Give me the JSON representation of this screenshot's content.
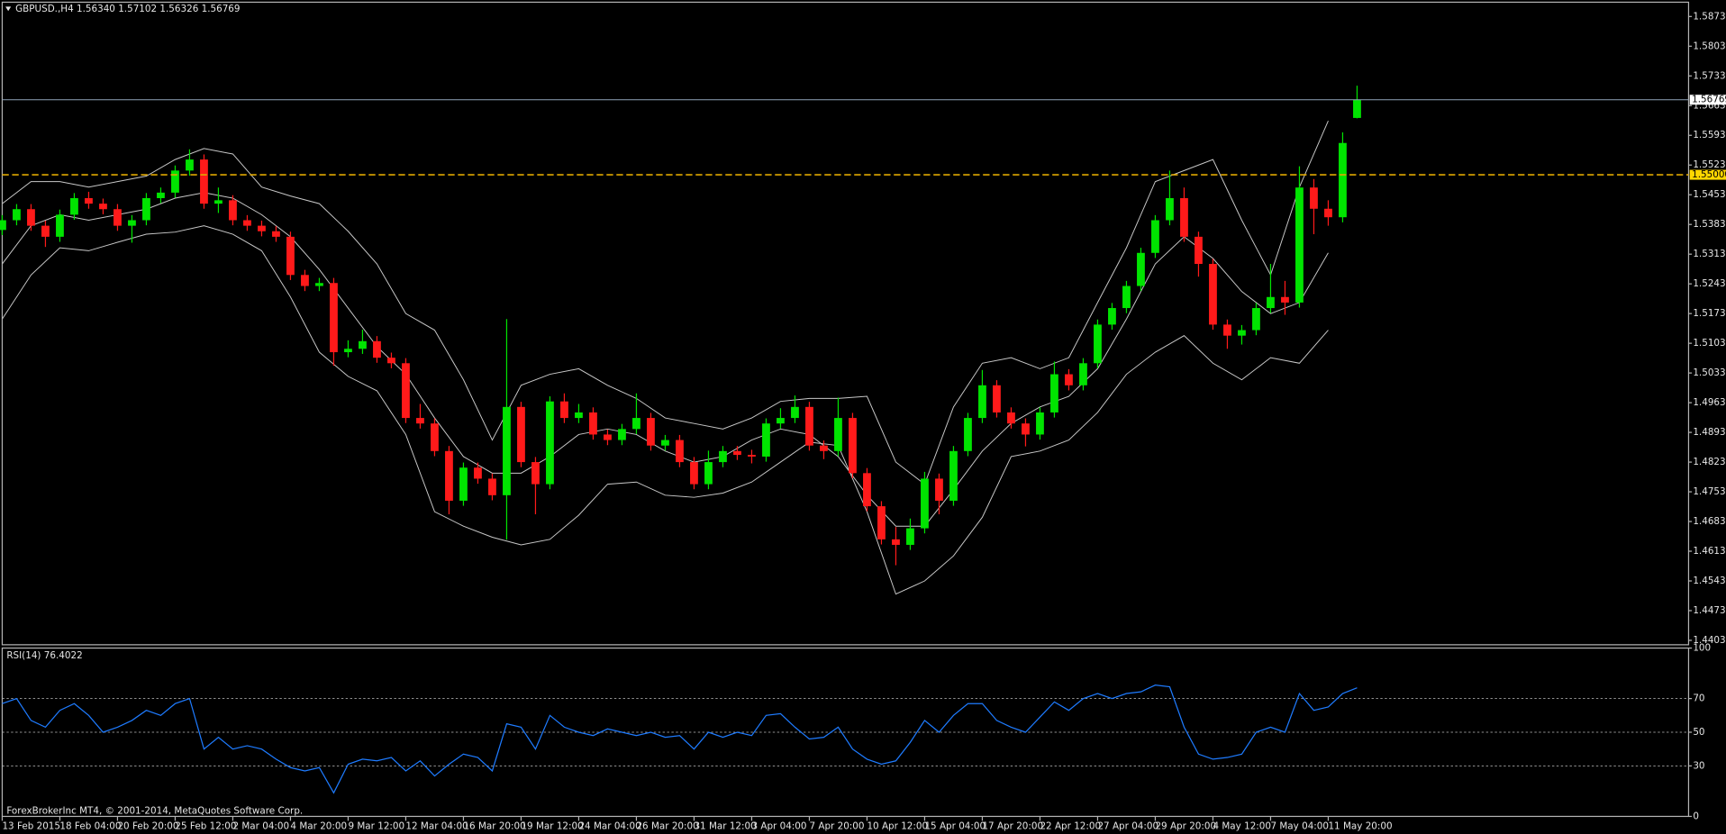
{
  "chart_data": [
    {
      "type": "candlestick",
      "title": "GBPUSD.,H4  1.56340 1.57102 1.56326 1.56769",
      "x": [
        0,
        4,
        8,
        12,
        16,
        20,
        24,
        28,
        32,
        36,
        40,
        44,
        48,
        52,
        56,
        60,
        64,
        68,
        72,
        76,
        80,
        84,
        88,
        92,
        96,
        100,
        104,
        108,
        112,
        116,
        120,
        124,
        128,
        132,
        136,
        140,
        144,
        148,
        152,
        156,
        160,
        164,
        168,
        172,
        176,
        180,
        184,
        188,
        192,
        196,
        200,
        204,
        208,
        212,
        216,
        220,
        224,
        228,
        232,
        236,
        240,
        244,
        248,
        252,
        256,
        260,
        264,
        268,
        272,
        276,
        280,
        284,
        288,
        292,
        296,
        300,
        304,
        308,
        312,
        316,
        320,
        324,
        328,
        332,
        336,
        340,
        344,
        348,
        352,
        356,
        360,
        364,
        368,
        372,
        376
      ],
      "open": [
        1.537,
        1.5393,
        1.5419,
        1.538,
        1.5354,
        1.5406,
        1.5445,
        1.5432,
        1.5419,
        1.538,
        1.5393,
        1.5445,
        1.5458,
        1.551,
        1.5536,
        1.5432,
        1.544,
        1.5393,
        1.538,
        1.5367,
        1.5354,
        1.5264,
        1.5238,
        1.5245,
        1.5082,
        1.509,
        1.5108,
        1.5069,
        1.5056,
        1.4927,
        1.4914,
        1.4849,
        1.4732,
        1.481,
        1.4784,
        1.4745,
        1.4953,
        1.4823,
        1.4771,
        1.4966,
        1.4927,
        1.494,
        1.4888,
        1.4875,
        1.4901,
        1.4927,
        1.4862,
        1.4875,
        1.4823,
        1.4771,
        1.4823,
        1.4849,
        1.484,
        1.4836,
        1.4914,
        1.4927,
        1.4953,
        1.4862,
        1.4849,
        1.4927,
        1.4797,
        1.4719,
        1.4641,
        1.4628,
        1.4667,
        1.4784,
        1.4732,
        1.4849,
        1.4927,
        1.5004,
        1.494,
        1.4914,
        1.4888,
        1.494,
        1.503,
        1.5004,
        1.5056,
        1.5147,
        1.5186,
        1.5238,
        1.5316,
        1.5393,
        1.5445,
        1.5354,
        1.529,
        1.5147,
        1.5121,
        1.5134,
        1.5186,
        1.5212,
        1.5199,
        1.547,
        1.542,
        1.54,
        1.5634
      ],
      "high": [
        1.5405,
        1.5431,
        1.5431,
        1.5392,
        1.5418,
        1.5457,
        1.546,
        1.5444,
        1.5431,
        1.5405,
        1.5457,
        1.547,
        1.5522,
        1.556,
        1.5548,
        1.547,
        1.5452,
        1.5405,
        1.5392,
        1.5379,
        1.5366,
        1.5276,
        1.5257,
        1.5257,
        1.511,
        1.5135,
        1.512,
        1.5081,
        1.5068,
        1.496,
        1.4926,
        1.4861,
        1.4822,
        1.4822,
        1.4796,
        1.516,
        1.4965,
        1.4835,
        1.4978,
        1.4985,
        1.496,
        1.4952,
        1.49,
        1.4913,
        1.4985,
        1.4939,
        1.4887,
        1.4887,
        1.4835,
        1.485,
        1.4861,
        1.4861,
        1.4852,
        1.4926,
        1.495,
        1.498,
        1.4965,
        1.4874,
        1.4975,
        1.4939,
        1.4809,
        1.4731,
        1.467,
        1.469,
        1.48,
        1.4796,
        1.4861,
        1.4939,
        1.504,
        1.5016,
        1.4952,
        1.4926,
        1.4952,
        1.506,
        1.5042,
        1.5068,
        1.5159,
        1.5198,
        1.525,
        1.5328,
        1.5405,
        1.551,
        1.547,
        1.5366,
        1.5302,
        1.5159,
        1.5146,
        1.5198,
        1.529,
        1.525,
        1.552,
        1.549,
        1.544,
        1.56,
        1.571
      ],
      "low": [
        1.5358,
        1.5381,
        1.5368,
        1.533,
        1.5342,
        1.5394,
        1.542,
        1.5407,
        1.5368,
        1.534,
        1.5381,
        1.5433,
        1.5446,
        1.5498,
        1.542,
        1.541,
        1.5381,
        1.5368,
        1.5355,
        1.5342,
        1.5252,
        1.5226,
        1.5226,
        1.505,
        1.507,
        1.5078,
        1.5057,
        1.5044,
        1.4915,
        1.4902,
        1.4837,
        1.47,
        1.472,
        1.4772,
        1.4733,
        1.464,
        1.4811,
        1.47,
        1.4759,
        1.4915,
        1.4915,
        1.4876,
        1.4863,
        1.4863,
        1.4889,
        1.485,
        1.485,
        1.4811,
        1.4759,
        1.4759,
        1.4811,
        1.4828,
        1.482,
        1.4824,
        1.4902,
        1.4915,
        1.485,
        1.483,
        1.4837,
        1.4785,
        1.4707,
        1.4629,
        1.458,
        1.4616,
        1.4655,
        1.47,
        1.472,
        1.4837,
        1.4915,
        1.4928,
        1.4902,
        1.486,
        1.4876,
        1.4928,
        1.4992,
        1.4992,
        1.5044,
        1.5135,
        1.5174,
        1.5226,
        1.5304,
        1.5381,
        1.5342,
        1.526,
        1.5135,
        1.509,
        1.51,
        1.5122,
        1.5174,
        1.517,
        1.5187,
        1.536,
        1.538,
        1.5388,
        1.5633
      ],
      "close": [
        1.5393,
        1.5419,
        1.538,
        1.5354,
        1.5406,
        1.5445,
        1.5432,
        1.5419,
        1.538,
        1.5393,
        1.5445,
        1.5458,
        1.551,
        1.5536,
        1.5432,
        1.544,
        1.5393,
        1.538,
        1.5367,
        1.5354,
        1.5264,
        1.5238,
        1.5245,
        1.5082,
        1.509,
        1.5108,
        1.5069,
        1.5056,
        1.4927,
        1.4914,
        1.4849,
        1.4732,
        1.481,
        1.4784,
        1.4745,
        1.4953,
        1.4823,
        1.4771,
        1.4966,
        1.4927,
        1.494,
        1.4888,
        1.4875,
        1.4901,
        1.4927,
        1.4862,
        1.4875,
        1.4823,
        1.4771,
        1.4823,
        1.4849,
        1.484,
        1.4836,
        1.4914,
        1.4927,
        1.4953,
        1.4862,
        1.4849,
        1.4927,
        1.4797,
        1.4719,
        1.4641,
        1.4628,
        1.4667,
        1.4784,
        1.4732,
        1.4849,
        1.4927,
        1.5004,
        1.494,
        1.4914,
        1.4888,
        1.494,
        1.503,
        1.5004,
        1.5056,
        1.5147,
        1.5186,
        1.5238,
        1.5316,
        1.5393,
        1.5445,
        1.5354,
        1.529,
        1.5147,
        1.5121,
        1.5134,
        1.5186,
        1.5212,
        1.5199,
        1.547,
        1.542,
        1.54,
        1.5575,
        1.5677
      ],
      "up_color": "#00e400",
      "down_color": "#ff1a1a",
      "bands": {
        "color": "#c8c8c8",
        "x": [
          0,
          8,
          16,
          24,
          32,
          40,
          48,
          56,
          64,
          72,
          80,
          88,
          96,
          104,
          112,
          120,
          128,
          136,
          144,
          152,
          160,
          168,
          176,
          184,
          192,
          200,
          208,
          216,
          224,
          232,
          240,
          248,
          256,
          264,
          272,
          280,
          288,
          296,
          304,
          312,
          320,
          328,
          336,
          344,
          352,
          360,
          368
        ],
        "upper": [
          1.5432,
          1.5484,
          1.5484,
          1.5471,
          1.5484,
          1.5497,
          1.5536,
          1.5562,
          1.5549,
          1.5471,
          1.545,
          1.5432,
          1.5367,
          1.529,
          1.5173,
          1.5134,
          1.5017,
          1.4875,
          1.5004,
          1.503,
          1.5043,
          1.5004,
          1.4973,
          1.4927,
          1.4914,
          1.4901,
          1.4927,
          1.4966,
          1.4973,
          1.4973,
          1.4978,
          1.4823,
          1.4771,
          1.4953,
          1.5056,
          1.5069,
          1.5043,
          1.5069,
          1.5199,
          1.5328,
          1.5484,
          1.551,
          1.5536,
          1.5393,
          1.5264,
          1.5471,
          1.5627
        ],
        "middle": [
          1.529,
          1.538,
          1.5406,
          1.5393,
          1.5406,
          1.5419,
          1.5445,
          1.5458,
          1.5445,
          1.5406,
          1.5354,
          1.5277,
          1.5186,
          1.5095,
          1.503,
          1.4927,
          1.4836,
          1.4797,
          1.4797,
          1.4836,
          1.4888,
          1.4901,
          1.4888,
          1.4849,
          1.4823,
          1.4836,
          1.4875,
          1.4901,
          1.4888,
          1.4836,
          1.4745,
          1.4672,
          1.4672,
          1.4758,
          1.4849,
          1.4914,
          1.4953,
          1.4978,
          1.5043,
          1.516,
          1.529,
          1.5354,
          1.5303,
          1.5225,
          1.5173,
          1.5199,
          1.5316
        ],
        "lower": [
          1.516,
          1.5264,
          1.5328,
          1.5321,
          1.5341,
          1.536,
          1.5365,
          1.538,
          1.536,
          1.5321,
          1.5212,
          1.5082,
          1.5025,
          1.4991,
          1.4888,
          1.4706,
          1.4672,
          1.4646,
          1.4628,
          1.4641,
          1.4698,
          1.4771,
          1.4776,
          1.4745,
          1.474,
          1.475,
          1.4776,
          1.4823,
          1.487,
          1.4862,
          1.4706,
          1.4512,
          1.4543,
          1.4602,
          1.4693,
          1.4836,
          1.4849,
          1.4875,
          1.494,
          1.503,
          1.5082,
          1.5121,
          1.5056,
          1.5017,
          1.5069,
          1.5056,
          1.5134
        ]
      },
      "lines": [
        {
          "value": 1.56769,
          "label": "1.56769",
          "color": "#8fa3b8",
          "style": "solid",
          "label_bg": "#ffffff"
        },
        {
          "value": 1.55,
          "label": "1.55000",
          "color": "#e0a800",
          "style": "dashed",
          "label_bg": "#ffd700"
        }
      ],
      "xlim": [
        0,
        468
      ],
      "xticks": [
        {
          "value": 0,
          "label": "13 Feb 2015"
        },
        {
          "value": 16,
          "label": "18 Feb 04:00"
        },
        {
          "value": 32,
          "label": "20 Feb 20:00"
        },
        {
          "value": 48,
          "label": "25 Feb 12:00"
        },
        {
          "value": 64,
          "label": "2 Mar 04:00"
        },
        {
          "value": 80,
          "label": "4 Mar 20:00"
        },
        {
          "value": 96,
          "label": "9 Mar 12:00"
        },
        {
          "value": 112,
          "label": "12 Mar 04:00"
        },
        {
          "value": 128,
          "label": "16 Mar 20:00"
        },
        {
          "value": 144,
          "label": "19 Mar 12:00"
        },
        {
          "value": 160,
          "label": "24 Mar 04:00"
        },
        {
          "value": 176,
          "label": "26 Mar 20:00"
        },
        {
          "value": 192,
          "label": "31 Mar 12:00"
        },
        {
          "value": 208,
          "label": "3 Apr 04:00"
        },
        {
          "value": 224,
          "label": "7 Apr 20:00"
        },
        {
          "value": 240,
          "label": "10 Apr 12:00"
        },
        {
          "value": 256,
          "label": "15 Apr 04:00"
        },
        {
          "value": 272,
          "label": "17 Apr 20:00"
        },
        {
          "value": 288,
          "label": "22 Apr 12:00"
        },
        {
          "value": 304,
          "label": "27 Apr 04:00"
        },
        {
          "value": 320,
          "label": "29 Apr 20:00"
        },
        {
          "value": 336,
          "label": "4 May 12:00"
        },
        {
          "value": 352,
          "label": "7 May 04:00"
        },
        {
          "value": 368,
          "label": "11 May 20:00"
        }
      ],
      "ylim": [
        1.43926,
        1.59067
      ],
      "yticks": [
        {
          "value": 1.4403,
          "label": "1.44030"
        },
        {
          "value": 1.4473,
          "label": "1.44730"
        },
        {
          "value": 1.4543,
          "label": "1.45430"
        },
        {
          "value": 1.4613,
          "label": "1.46130"
        },
        {
          "value": 1.4683,
          "label": "1.46830"
        },
        {
          "value": 1.4753,
          "label": "1.47530"
        },
        {
          "value": 1.4823,
          "label": "1.48230"
        },
        {
          "value": 1.4893,
          "label": "1.48930"
        },
        {
          "value": 1.4963,
          "label": "1.49630"
        },
        {
          "value": 1.5033,
          "label": "1.50330"
        },
        {
          "value": 1.5103,
          "label": "1.51030"
        },
        {
          "value": 1.5173,
          "label": "1.51730"
        },
        {
          "value": 1.5243,
          "label": "1.52430"
        },
        {
          "value": 1.5313,
          "label": "1.53130"
        },
        {
          "value": 1.5383,
          "label": "1.53830"
        },
        {
          "value": 1.5453,
          "label": "1.54530"
        },
        {
          "value": 1.5523,
          "label": "1.55230"
        },
        {
          "value": 1.5593,
          "label": "1.55930"
        },
        {
          "value": 1.5663,
          "label": "1.56630"
        },
        {
          "value": 1.5733,
          "label": "1.57330"
        },
        {
          "value": 1.5803,
          "label": "1.58030"
        },
        {
          "value": 1.5873,
          "label": "1.58730"
        }
      ]
    },
    {
      "type": "line",
      "title": "RSI(14) 76.4022",
      "x": [
        0,
        4,
        8,
        12,
        16,
        20,
        24,
        28,
        32,
        36,
        40,
        44,
        48,
        52,
        56,
        60,
        64,
        68,
        72,
        76,
        80,
        84,
        88,
        92,
        96,
        100,
        104,
        108,
        112,
        116,
        120,
        124,
        128,
        132,
        136,
        140,
        144,
        148,
        152,
        156,
        160,
        164,
        168,
        172,
        176,
        180,
        184,
        188,
        192,
        196,
        200,
        204,
        208,
        212,
        216,
        220,
        224,
        228,
        232,
        236,
        240,
        244,
        248,
        252,
        256,
        260,
        264,
        268,
        272,
        276,
        280,
        284,
        288,
        292,
        296,
        300,
        304,
        308,
        312,
        316,
        320,
        324,
        328,
        332,
        336,
        340,
        344,
        348,
        352,
        356,
        360,
        364,
        368,
        372,
        376
      ],
      "series": [
        {
          "color": "#1e7bff",
          "values": [
            67,
            70,
            57,
            53,
            63,
            67,
            60,
            50,
            53,
            57,
            63,
            60,
            67,
            70,
            40,
            47,
            40,
            42,
            40,
            34,
            29,
            27,
            29,
            14,
            31,
            34,
            33,
            35,
            27,
            33,
            24,
            31,
            37,
            35,
            27,
            55,
            53,
            40,
            60,
            53,
            50,
            48,
            52,
            50,
            48,
            50,
            47,
            48,
            40,
            50,
            47,
            50,
            48,
            60,
            61,
            53,
            46,
            47,
            53,
            40,
            34,
            31,
            33,
            44,
            57,
            50,
            60,
            67,
            67,
            57,
            53,
            50,
            59,
            68,
            63,
            70,
            73,
            70,
            73,
            74,
            78,
            77,
            53,
            37,
            34,
            35,
            37,
            50,
            53,
            50,
            73,
            63,
            65,
            73,
            76.4022
          ]
        }
      ],
      "ylim": [
        0,
        100
      ],
      "yticks": [
        0,
        30,
        50,
        70,
        100
      ],
      "levels": [
        30,
        50,
        70
      ]
    }
  ],
  "footer": "ForexBrokerInc MT4, © 2001-2014, MetaQuotes Software Corp."
}
